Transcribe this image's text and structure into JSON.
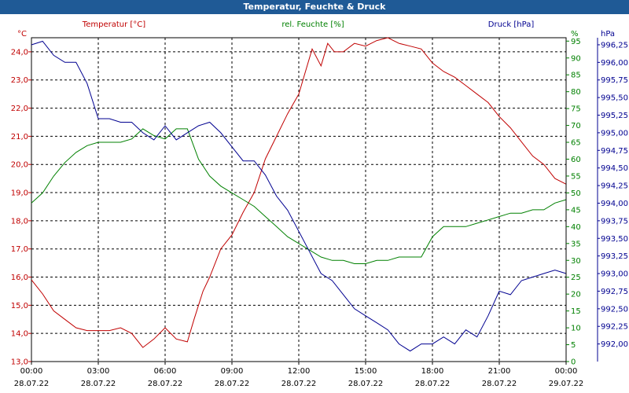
{
  "window": {
    "title": "Temperatur, Feuchte & Druck"
  },
  "chart_data": {
    "type": "line",
    "title": "Temperatur, Feuchte & Druck",
    "grid": true,
    "x_ticks": [
      {
        "time": "00:00",
        "date": "28.07.22"
      },
      {
        "time": "03:00",
        "date": "28.07.22"
      },
      {
        "time": "06:00",
        "date": "28.07.22"
      },
      {
        "time": "09:00",
        "date": "28.07.22"
      },
      {
        "time": "12:00",
        "date": "28.07.22"
      },
      {
        "time": "15:00",
        "date": "28.07.22"
      },
      {
        "time": "18:00",
        "date": "28.07.22"
      },
      {
        "time": "21:00",
        "date": "28.07.22"
      },
      {
        "time": "00:00",
        "date": "29.07.22"
      }
    ],
    "x_range_hours": [
      0,
      24
    ],
    "axes": {
      "temperature": {
        "label": "Temperatur [°C]",
        "unit": "°C",
        "color": "#c00000",
        "ylim": [
          13.0,
          24.5
        ],
        "ticks": [
          "13,0",
          "14,0",
          "15,0",
          "16,0",
          "17,0",
          "18,0",
          "19,0",
          "20,0",
          "21,0",
          "22,0",
          "23,0",
          "24,0"
        ],
        "tick_values": [
          13,
          14,
          15,
          16,
          17,
          18,
          19,
          20,
          21,
          22,
          23,
          24
        ]
      },
      "humidity": {
        "label": "rel. Feuchte [%]",
        "unit": "%",
        "color": "#008000",
        "ylim": [
          0,
          96
        ],
        "ticks": [
          "0",
          "5",
          "10",
          "15",
          "20",
          "25",
          "30",
          "35",
          "40",
          "45",
          "50",
          "55",
          "60",
          "65",
          "70",
          "75",
          "80",
          "85",
          "90",
          "95"
        ],
        "tick_values": [
          0,
          5,
          10,
          15,
          20,
          25,
          30,
          35,
          40,
          45,
          50,
          55,
          60,
          65,
          70,
          75,
          80,
          85,
          90,
          95
        ]
      },
      "pressure": {
        "label": "Druck [hPa]",
        "unit": "hPa",
        "color": "#000090",
        "ylim": [
          991.75,
          996.35
        ],
        "ticks": [
          "992,00",
          "992,25",
          "992,50",
          "992,75",
          "993,00",
          "993,25",
          "993,50",
          "993,75",
          "994,00",
          "994,25",
          "994,50",
          "994,75",
          "995,00",
          "995,25",
          "995,50",
          "995,75",
          "996,00",
          "996,25"
        ],
        "tick_values": [
          992.0,
          992.25,
          992.5,
          992.75,
          993.0,
          993.25,
          993.5,
          993.75,
          994.0,
          994.25,
          994.5,
          994.75,
          995.0,
          995.25,
          995.5,
          995.75,
          996.0,
          996.25
        ]
      }
    },
    "series": [
      {
        "name": "Temperatur [°C]",
        "axis": "temperature",
        "x": [
          0,
          0.5,
          1,
          1.5,
          2,
          2.5,
          3,
          3.5,
          4,
          4.5,
          5,
          5.5,
          6,
          6.5,
          7,
          7.3,
          7.7,
          8,
          8.5,
          9,
          9.5,
          10,
          10.5,
          11,
          11.5,
          12,
          12.3,
          12.6,
          13,
          13.3,
          13.6,
          14,
          14.5,
          15,
          15.5,
          16,
          16.5,
          17,
          17.5,
          18,
          18.5,
          19,
          19.5,
          20,
          20.5,
          21,
          21.5,
          22,
          22.5,
          23,
          23.5,
          24
        ],
        "values": [
          15.9,
          15.4,
          14.8,
          14.5,
          14.2,
          14.1,
          14.1,
          14.1,
          14.2,
          14.0,
          13.5,
          13.8,
          14.2,
          13.8,
          13.7,
          14.5,
          15.5,
          16.0,
          17.0,
          17.5,
          18.3,
          19.0,
          20.2,
          21.0,
          21.8,
          22.5,
          23.3,
          24.1,
          23.5,
          24.3,
          24.0,
          24.0,
          24.3,
          24.2,
          24.4,
          24.5,
          24.3,
          24.2,
          24.1,
          23.6,
          23.3,
          23.1,
          22.8,
          22.5,
          22.2,
          21.7,
          21.3,
          20.8,
          20.3,
          20.0,
          19.5,
          19.3
        ]
      },
      {
        "name": "rel. Feuchte [%]",
        "axis": "humidity",
        "x": [
          0,
          0.5,
          1,
          1.5,
          2,
          2.5,
          3,
          3.5,
          4,
          4.5,
          5,
          5.5,
          6,
          6.5,
          7,
          7.5,
          8,
          8.5,
          9,
          9.5,
          10,
          10.5,
          11,
          11.5,
          12,
          12.5,
          13,
          13.5,
          14,
          14.5,
          15,
          15.5,
          16,
          16.5,
          17,
          17.5,
          18,
          18.5,
          19,
          19.5,
          20,
          20.5,
          21,
          21.5,
          22,
          22.5,
          23,
          23.5,
          24
        ],
        "values": [
          47,
          50,
          55,
          59,
          62,
          64,
          65,
          65,
          65,
          66,
          69,
          67,
          66,
          69,
          69,
          60,
          55,
          52,
          50,
          48,
          46,
          43,
          40,
          37,
          35,
          33,
          31,
          30,
          30,
          29,
          29,
          30,
          30,
          31,
          31,
          31,
          37,
          40,
          40,
          40,
          41,
          42,
          43,
          44,
          44,
          45,
          45,
          47,
          48
        ]
      },
      {
        "name": "Druck [hPa]",
        "axis": "pressure",
        "x": [
          0,
          0.5,
          1,
          1.5,
          2,
          2.5,
          3,
          3.5,
          4,
          4.5,
          5,
          5.5,
          6,
          6.5,
          7,
          7.5,
          8,
          8.5,
          9,
          9.5,
          10,
          10.5,
          11,
          11.5,
          12,
          12.5,
          13,
          13.5,
          14,
          14.5,
          15,
          15.5,
          16,
          16.5,
          17,
          17.5,
          18,
          18.5,
          19,
          19.5,
          20,
          20.5,
          21,
          21.5,
          22,
          22.5,
          23,
          23.5,
          24
        ],
        "values": [
          996.25,
          996.3,
          996.1,
          996.0,
          996.0,
          995.7,
          995.2,
          995.2,
          995.15,
          995.15,
          995.0,
          994.9,
          995.1,
          994.9,
          995.0,
          995.1,
          995.15,
          995.0,
          994.8,
          994.6,
          994.6,
          994.4,
          994.1,
          993.9,
          993.6,
          993.3,
          993.0,
          992.9,
          992.7,
          992.5,
          992.4,
          992.3,
          992.2,
          992.0,
          991.9,
          992.0,
          992.0,
          992.1,
          992.0,
          992.2,
          992.1,
          992.4,
          992.75,
          992.7,
          992.9,
          992.95,
          993.0,
          993.05,
          993.0
        ]
      }
    ]
  }
}
